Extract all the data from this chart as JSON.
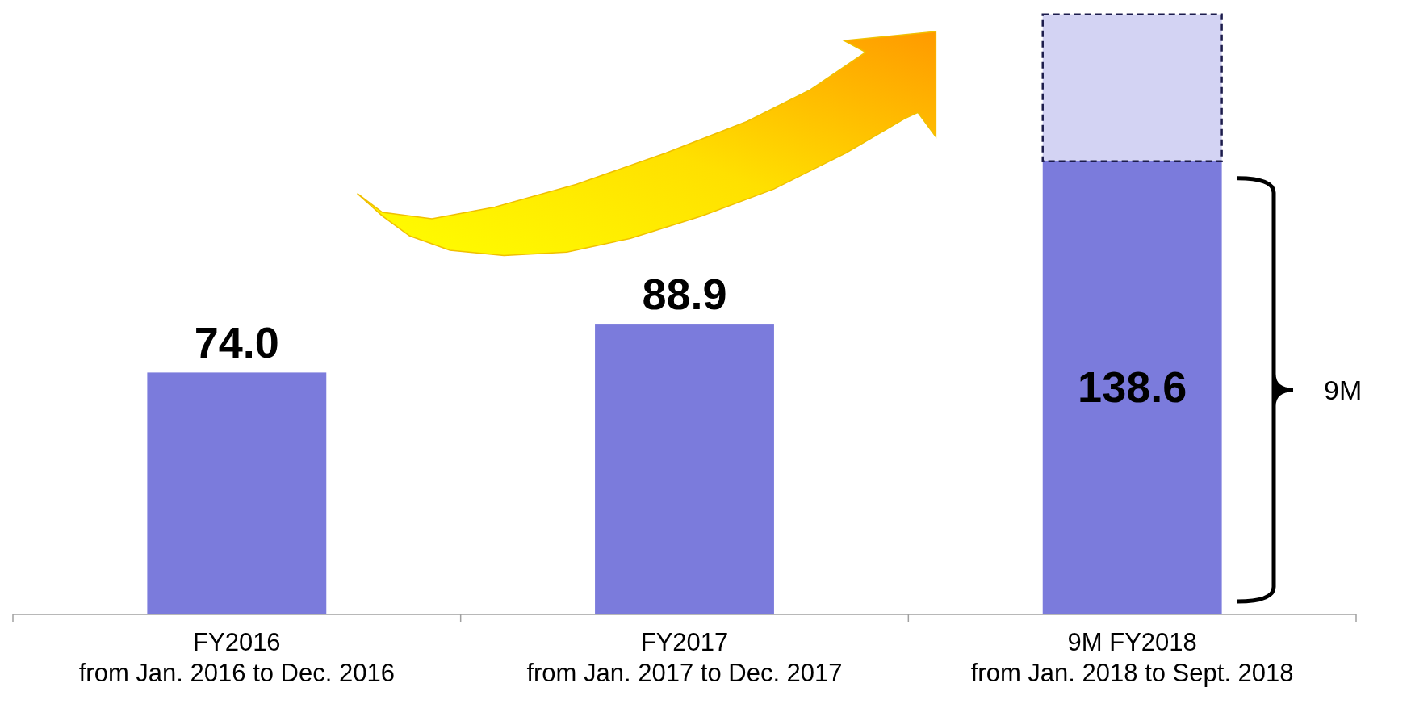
{
  "chart_data": {
    "type": "bar",
    "stacked": true,
    "categories": [
      "FY2016\nfrom Jan. 2016 to Dec. 2016",
      "FY2017\nfrom Jan. 2017 to Dec. 2017",
      "9M FY2018\nfrom Jan. 2018 to Sept. 2018"
    ],
    "series": [
      {
        "color": "#7b7bdc",
        "values": [
          74.0,
          88.9,
          138.6
        ],
        "value_labels": [
          "74.0",
          "88.9",
          "138.6"
        ]
      },
      {
        "color": "#d3d3f3",
        "values": [
          null,
          null,
          45
        ],
        "line_style": "dashed"
      }
    ],
    "annotations": [
      "9M"
    ]
  }
}
